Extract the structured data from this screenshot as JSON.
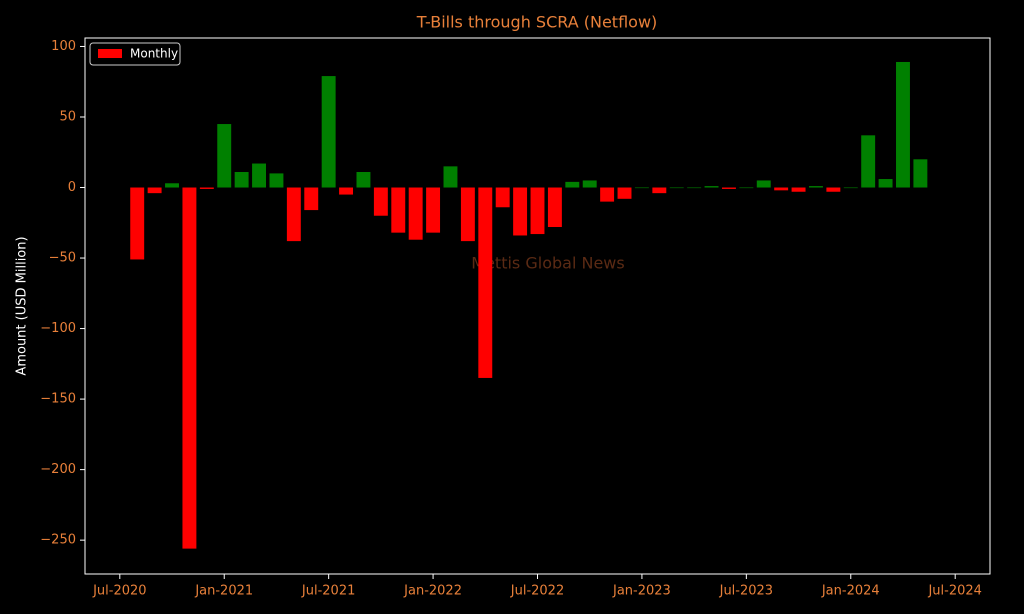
{
  "chart_data": {
    "type": "bar",
    "title": "T-Bills through SCRA (Netflow)",
    "ylabel": "Amount (USD Million)",
    "watermark": "Mettis Global News",
    "x": [
      "2020-08",
      "2020-09",
      "2020-10",
      "2020-11",
      "2020-12",
      "2021-01",
      "2021-02",
      "2021-03",
      "2021-04",
      "2021-05",
      "2021-06",
      "2021-07",
      "2021-08",
      "2021-09",
      "2021-10",
      "2021-11",
      "2021-12",
      "2022-01",
      "2022-02",
      "2022-03",
      "2022-04",
      "2022-05",
      "2022-06",
      "2022-07",
      "2022-08",
      "2022-09",
      "2022-10",
      "2022-11",
      "2022-12",
      "2023-01",
      "2023-02",
      "2023-03",
      "2023-04",
      "2023-05",
      "2023-06",
      "2023-07",
      "2023-08",
      "2023-09",
      "2023-10",
      "2023-11",
      "2023-12",
      "2024-01",
      "2024-02",
      "2024-03",
      "2024-04",
      "2024-05"
    ],
    "series": [
      {
        "name": "Monthly",
        "color": "#ff0000",
        "positive_color": "#008000",
        "values": [
          -51,
          -4,
          3,
          -256,
          -1,
          45,
          11,
          17,
          10,
          -38,
          -16,
          79,
          -5,
          11,
          -20,
          -32,
          -37,
          -32,
          15,
          -38,
          -135,
          -14,
          -34,
          -33,
          -28,
          4,
          5,
          -10,
          -8,
          0,
          -4,
          0,
          0,
          1,
          -1,
          0,
          5,
          -2,
          -3,
          1,
          -3,
          0,
          37,
          6,
          89,
          20
        ]
      }
    ],
    "xlim": [
      "2020-05",
      "2024-09"
    ],
    "xticks": [
      {
        "value": "2020-07",
        "label": "Jul-2020"
      },
      {
        "value": "2021-01",
        "label": "Jan-2021"
      },
      {
        "value": "2021-07",
        "label": "Jul-2021"
      },
      {
        "value": "2022-01",
        "label": "Jan-2022"
      },
      {
        "value": "2022-07",
        "label": "Jul-2022"
      },
      {
        "value": "2023-01",
        "label": "Jan-2023"
      },
      {
        "value": "2023-07",
        "label": "Jul-2023"
      },
      {
        "value": "2024-01",
        "label": "Jan-2024"
      },
      {
        "value": "2024-07",
        "label": "Jul-2024"
      }
    ],
    "ylim": [
      -274,
      106
    ],
    "yticks": [
      {
        "value": -250,
        "label": "−250"
      },
      {
        "value": -200,
        "label": "−200"
      },
      {
        "value": -150,
        "label": "−150"
      },
      {
        "value": -100,
        "label": "−100"
      },
      {
        "value": -50,
        "label": "−50"
      },
      0,
      50,
      100
    ],
    "legend": "upper left"
  }
}
